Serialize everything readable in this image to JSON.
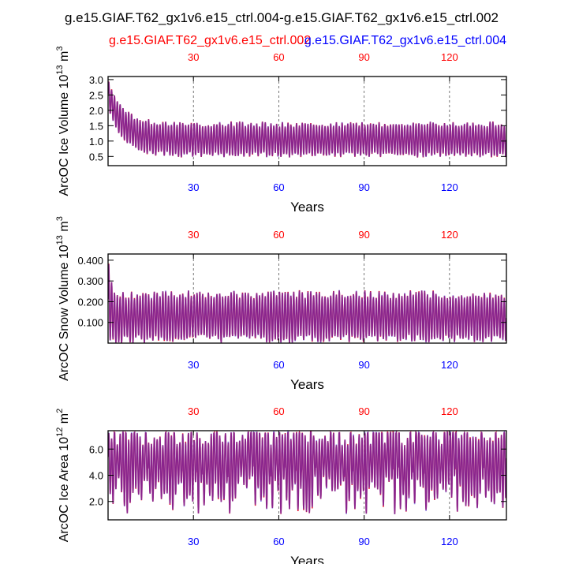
{
  "title": "g.e15.GIAF.T62_gx1v6.e15_ctrl.004-g.e15.GIAF.T62_gx1v6.e15_ctrl.002",
  "legend": {
    "red_label": "g.e15.GIAF.T62_gx1v6.e15_ctrl.002",
    "blue_label": "g.e15.GIAF.T62_gx1v6.e15_ctrl.004"
  },
  "colors": {
    "red": "#ff0000",
    "blue": "#0000ff",
    "red_line": "#e8102a",
    "blue_line": "#3a2bd6",
    "axis": "#000000",
    "grid": "#555555"
  },
  "chart_data": [
    {
      "type": "line",
      "title": "",
      "xlabel": "Years",
      "ylabel": "ArcOC Ice Volume 10",
      "ylabel_exp": "13",
      "ylabel_unit": " m",
      "ylabel_unit_exp": "3",
      "xlim": [
        0,
        140
      ],
      "ylim": [
        0.2,
        3.1
      ],
      "yticks": [
        0.5,
        1.0,
        1.5,
        2.0,
        2.5,
        3.0
      ],
      "ytick_labels": [
        "0.5",
        "1.0",
        "1.5",
        "2.0",
        "2.5",
        "3.0"
      ],
      "bottom_xticks": [
        30,
        60,
        90,
        120
      ],
      "bottom_xtick_labels": [
        "30",
        "60",
        "90",
        "120"
      ],
      "top_xticks": [
        30,
        60,
        90,
        120
      ],
      "top_xtick_labels": [
        "30",
        "60",
        "90",
        "120"
      ],
      "grid_x": [
        30,
        60,
        90,
        120
      ],
      "series_model": {
        "max_start": 3.0,
        "min_start": 2.1,
        "max_mean": 1.55,
        "min_mean": 0.55,
        "decay_years": 5,
        "variability": 0.08
      },
      "series": [
        {
          "name": "g.e15.GIAF.T62_gx1v6.e15_ctrl.002",
          "color": "red"
        },
        {
          "name": "g.e15.GIAF.T62_gx1v6.e15_ctrl.004",
          "color": "blue"
        }
      ]
    },
    {
      "type": "line",
      "title": "",
      "xlabel": "Years",
      "ylabel": "ArcOC Snow Volume 10",
      "ylabel_exp": "13",
      "ylabel_unit": " m",
      "ylabel_unit_exp": "3",
      "xlim": [
        0,
        140
      ],
      "ylim": [
        0.0,
        0.43
      ],
      "yticks": [
        0.1,
        0.2,
        0.3,
        0.4
      ],
      "ytick_labels": [
        "0.100",
        "0.200",
        "0.300",
        "0.400"
      ],
      "bottom_xticks": [
        30,
        60,
        90,
        120
      ],
      "bottom_xtick_labels": [
        "30",
        "60",
        "90",
        "120"
      ],
      "top_xticks": [
        30,
        60,
        90,
        120
      ],
      "top_xtick_labels": [
        "30",
        "60",
        "90",
        "120"
      ],
      "grid_x": [
        30,
        60,
        90,
        120
      ],
      "series_model": {
        "max_start": 0.42,
        "min_start": 0.01,
        "max_mean": 0.235,
        "min_mean": 0.02,
        "decay_years": 1,
        "variability": 0.02
      },
      "series": [
        {
          "name": "g.e15.GIAF.T62_gx1v6.e15_ctrl.002",
          "color": "red"
        },
        {
          "name": "g.e15.GIAF.T62_gx1v6.e15_ctrl.004",
          "color": "blue"
        }
      ]
    },
    {
      "type": "line",
      "title": "",
      "xlabel": "Years",
      "ylabel": "ArcOC Ice Area 10",
      "ylabel_exp": "12",
      "ylabel_unit": " m",
      "ylabel_unit_exp": "2",
      "xlim": [
        0,
        140
      ],
      "ylim": [
        0.6,
        7.4
      ],
      "yticks": [
        2.0,
        4.0,
        6.0
      ],
      "ytick_labels": [
        "2.0",
        "4.0",
        "6.0"
      ],
      "bottom_xticks": [
        30,
        60,
        90,
        120
      ],
      "bottom_xtick_labels": [
        "30",
        "60",
        "90",
        "120"
      ],
      "top_xticks": [
        30,
        60,
        90,
        120
      ],
      "top_xtick_labels": [
        "30",
        "60",
        "90",
        "120"
      ],
      "grid_x": [
        30,
        60,
        90,
        120
      ],
      "series_model": {
        "max_start": 7.25,
        "min_start": 3.6,
        "max_mean": 7.2,
        "min_mean": 2.5,
        "decay_years": 1,
        "variability": 0.9
      },
      "series": [
        {
          "name": "g.e15.GIAF.T62_gx1v6.e15_ctrl.002",
          "color": "red"
        },
        {
          "name": "g.e15.GIAF.T62_gx1v6.e15_ctrl.004",
          "color": "blue"
        }
      ]
    }
  ]
}
